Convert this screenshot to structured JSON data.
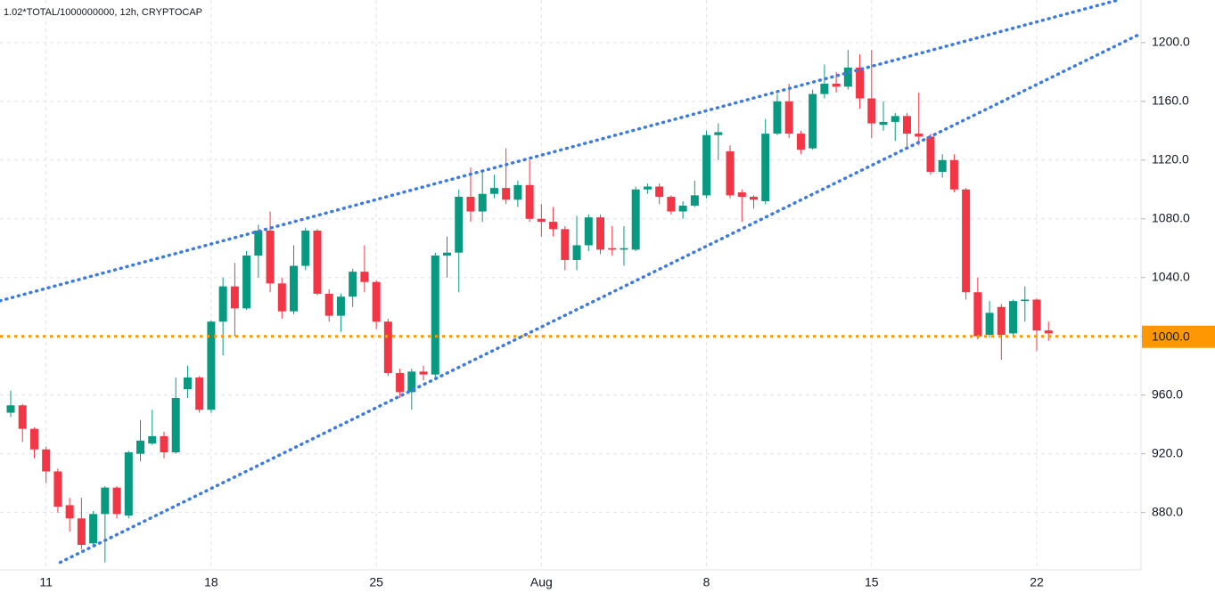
{
  "chart_data": {
    "type": "candlestick",
    "title": "1.02*TOTAL/1000000000, 12h, CRYPTOCAP",
    "categories": [
      null,
      null,
      null,
      "11",
      null,
      null,
      null,
      null,
      null,
      null,
      null,
      null,
      null,
      null,
      null,
      null,
      null,
      "18",
      null,
      null,
      null,
      null,
      null,
      null,
      null,
      null,
      null,
      null,
      null,
      null,
      null,
      "25",
      null,
      null,
      null,
      null,
      null,
      null,
      null,
      null,
      null,
      null,
      null,
      null,
      null,
      "Aug",
      null,
      null,
      null,
      null,
      null,
      null,
      null,
      null,
      null,
      null,
      null,
      null,
      null,
      "8",
      null,
      null,
      null,
      null,
      null,
      null,
      null,
      null,
      null,
      null,
      null,
      null,
      null,
      "15",
      null,
      null,
      null,
      null,
      null,
      null,
      null,
      null,
      null,
      null,
      null,
      null,
      null,
      "22",
      null
    ],
    "open": [
      948,
      953,
      937,
      923,
      908,
      885,
      876,
      859,
      879,
      897,
      878,
      920,
      927,
      932,
      921,
      964,
      972,
      950,
      1010,
      1034,
      1019,
      1055,
      1072,
      1036,
      1017,
      1048,
      1072,
      1029,
      1014,
      1027,
      1044,
      1037,
      1010,
      975,
      962,
      976,
      974,
      1055,
      1057,
      1095,
      1085,
      1097,
      1101,
      1093,
      1103,
      1080,
      1078,
      1073,
      1052,
      1062,
      1081,
      1060,
      1059,
      1059,
      1100,
      1102,
      1095,
      1085,
      1089,
      1096,
      1137,
      1126,
      1098,
      1095,
      1092,
      1138,
      1160,
      1138,
      1128,
      1165,
      1172,
      1170,
      1183,
      1162,
      1144,
      1146,
      1150,
      1138,
      1136,
      1112,
      1120,
      1100,
      1030,
      1001,
      1020,
      1002,
      1024,
      1025,
      1004
    ],
    "high": [
      963,
      954,
      938,
      925,
      910,
      890,
      890,
      881,
      898,
      898,
      922,
      943,
      950,
      935,
      972,
      980,
      973,
      1011,
      1040,
      1050,
      1058,
      1076,
      1085,
      1040,
      1062,
      1074,
      1073,
      1032,
      1029,
      1046,
      1062,
      1038,
      1012,
      978,
      978,
      980,
      1057,
      1068,
      1100,
      1115,
      1112,
      1110,
      1128,
      1106,
      1120,
      1090,
      1088,
      1075,
      1082,
      1083,
      1083,
      1075,
      1075,
      1102,
      1104,
      1104,
      1096,
      1092,
      1106,
      1140,
      1145,
      1130,
      1100,
      1096,
      1148,
      1165,
      1172,
      1140,
      1168,
      1185,
      1180,
      1195,
      1192,
      1195,
      1160,
      1152,
      1152,
      1166,
      1138,
      1124,
      1124,
      1101,
      1040,
      1024,
      1022,
      1025,
      1034,
      1026,
      1010
    ],
    "low": [
      945,
      928,
      917,
      900,
      880,
      867,
      855,
      857,
      846,
      876,
      876,
      915,
      926,
      917,
      920,
      958,
      948,
      948,
      987,
      1000,
      1018,
      1040,
      1030,
      1012,
      1015,
      1045,
      1028,
      1010,
      1003,
      1020,
      1030,
      1005,
      973,
      958,
      950,
      970,
      972,
      1040,
      1030,
      1078,
      1078,
      1094,
      1090,
      1088,
      1078,
      1068,
      1068,
      1045,
      1045,
      1058,
      1056,
      1055,
      1048,
      1058,
      1097,
      1090,
      1083,
      1080,
      1088,
      1094,
      1120,
      1094,
      1078,
      1087,
      1090,
      1137,
      1135,
      1124,
      1127,
      1162,
      1166,
      1168,
      1155,
      1135,
      1140,
      1133,
      1128,
      1130,
      1110,
      1108,
      1098,
      1025,
      998,
      999,
      984,
      1000,
      1010,
      990,
      997
    ],
    "close": [
      953,
      937,
      923,
      908,
      884,
      876,
      858,
      879,
      897,
      879,
      921,
      929,
      932,
      921,
      958,
      972,
      950,
      1010,
      1034,
      1019,
      1055,
      1072,
      1036,
      1017,
      1048,
      1072,
      1029,
      1014,
      1027,
      1044,
      1037,
      1010,
      975,
      962,
      976,
      974,
      1055,
      1057,
      1095,
      1085,
      1097,
      1101,
      1093,
      1103,
      1080,
      1078,
      1073,
      1052,
      1062,
      1081,
      1059,
      1059,
      1060,
      1100,
      1102,
      1095,
      1085,
      1089,
      1096,
      1137,
      1139,
      1096,
      1095,
      1093,
      1138,
      1160,
      1138,
      1127,
      1165,
      1172,
      1170,
      1183,
      1162,
      1145,
      1146,
      1150,
      1138,
      1136,
      1112,
      1120,
      1100,
      1030,
      1000,
      1016,
      1001,
      1024,
      1025,
      1004,
      1002
    ],
    "up_color": "#089981",
    "down_color": "#f23645",
    "ylim": [
      841,
      1229
    ],
    "yticks": [
      {
        "value": 880,
        "label": "880.0"
      },
      {
        "value": 920,
        "label": "920.0"
      },
      {
        "value": 960,
        "label": "960.0"
      },
      {
        "value": 1000,
        "label": "1000.0"
      },
      {
        "value": 1040,
        "label": "1040.0"
      },
      {
        "value": 1080,
        "label": "1080.0"
      },
      {
        "value": 1120,
        "label": "1120.0"
      },
      {
        "value": 1160,
        "label": "1160.0"
      },
      {
        "value": 1200,
        "label": "1200.0"
      }
    ],
    "grid": true,
    "trendlines": [
      {
        "color": "#3d7be0",
        "points": [
          [
            -0.9,
            1024.2
          ],
          [
            93.9,
            1229
          ]
        ]
      },
      {
        "color": "#3d7be0",
        "points": [
          [
            4.2,
            846.1
          ],
          [
            95.8,
            1206
          ]
        ]
      }
    ],
    "price_line": {
      "value": 1000,
      "label": "1000.0",
      "color": "#ff9800"
    }
  }
}
